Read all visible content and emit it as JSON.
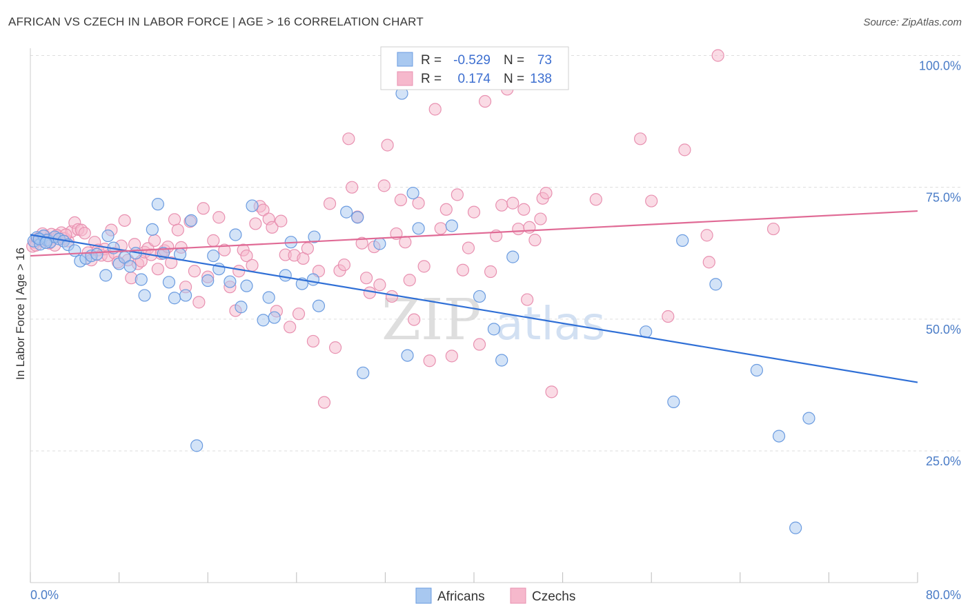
{
  "title": "AFRICAN VS CZECH IN LABOR FORCE | AGE > 16 CORRELATION CHART",
  "source": "Source: ZipAtlas.com",
  "watermark": {
    "zip": "ZIP",
    "atlas": "atlas"
  },
  "legend": {
    "r_label": "R =",
    "n_label": "N =",
    "rows": [
      {
        "r": "-0.529",
        "n": "73"
      },
      {
        "r": "0.174",
        "n": "138"
      }
    ]
  },
  "bottom_legend": [
    "Africans",
    "Czechs"
  ],
  "colors": {
    "africans_fill": "#a8c8f0",
    "africans_stroke": "#6a9be0",
    "africans_line": "#2f6fd6",
    "czechs_fill": "#f6b8cc",
    "czechs_stroke": "#e890b0",
    "czechs_line": "#e06a95",
    "tick_label": "#4a7cc7",
    "grid": "#dddddd"
  },
  "chart_data": {
    "type": "scatter",
    "title": "AFRICAN VS CZECH IN LABOR FORCE | AGE > 16 CORRELATION CHART",
    "xlabel": "",
    "ylabel": "In Labor Force | Age > 16",
    "xlim": [
      0,
      80
    ],
    "ylim": [
      0,
      103
    ],
    "x_tick_labels": [
      "0.0%",
      "80.0%"
    ],
    "y_ticks": [
      25,
      50,
      75,
      100
    ],
    "y_tick_labels": [
      "25.0%",
      "50.0%",
      "75.0%",
      "100.0%"
    ],
    "grid": true,
    "legend_position": "top-center",
    "series": [
      {
        "name": "Africans",
        "R": -0.529,
        "N": 73,
        "trend": [
          [
            0,
            66.0
          ],
          [
            80,
            38.0
          ]
        ],
        "points": [
          [
            0.3,
            64.8
          ],
          [
            0.6,
            65.5
          ],
          [
            0.9,
            64.2
          ],
          [
            1.2,
            65.8
          ],
          [
            1.5,
            65.0
          ],
          [
            1.8,
            64.6
          ],
          [
            2.2,
            65.6
          ],
          [
            2.6,
            65.2
          ],
          [
            3.0,
            64.8
          ],
          [
            3.4,
            64.1
          ],
          [
            4.0,
            63.0
          ],
          [
            4.5,
            61.0
          ],
          [
            5.0,
            61.5
          ],
          [
            5.5,
            62.0
          ],
          [
            6.0,
            62.3
          ],
          [
            6.8,
            58.3
          ],
          [
            7.0,
            65.8
          ],
          [
            7.5,
            63.5
          ],
          [
            8.0,
            60.5
          ],
          [
            8.5,
            61.7
          ],
          [
            9.0,
            60.0
          ],
          [
            9.5,
            62.5
          ],
          [
            10.0,
            57.5
          ],
          [
            10.3,
            54.5
          ],
          [
            11.0,
            67.0
          ],
          [
            11.5,
            71.8
          ],
          [
            12.0,
            62.5
          ],
          [
            12.5,
            57.0
          ],
          [
            13.0,
            54.0
          ],
          [
            13.5,
            62.3
          ],
          [
            14.0,
            54.5
          ],
          [
            14.5,
            68.7
          ],
          [
            15.0,
            26.0
          ],
          [
            16.0,
            57.3
          ],
          [
            16.5,
            62.0
          ],
          [
            17.0,
            59.5
          ],
          [
            18.0,
            57.1
          ],
          [
            18.5,
            66.0
          ],
          [
            19.0,
            52.3
          ],
          [
            19.5,
            56.3
          ],
          [
            20.0,
            71.5
          ],
          [
            21.0,
            49.8
          ],
          [
            21.5,
            54.1
          ],
          [
            22.0,
            50.3
          ],
          [
            23.0,
            58.3
          ],
          [
            23.5,
            64.6
          ],
          [
            24.5,
            56.7
          ],
          [
            25.5,
            57.5
          ],
          [
            25.6,
            65.6
          ],
          [
            26.0,
            52.5
          ],
          [
            28.5,
            70.3
          ],
          [
            29.5,
            69.3
          ],
          [
            30.0,
            39.8
          ],
          [
            31.5,
            64.3
          ],
          [
            33.5,
            92.8
          ],
          [
            34.0,
            43.1
          ],
          [
            34.5,
            73.9
          ],
          [
            35.0,
            67.2
          ],
          [
            38.0,
            67.7
          ],
          [
            40.5,
            54.3
          ],
          [
            41.8,
            48.1
          ],
          [
            42.5,
            42.2
          ],
          [
            43.5,
            61.8
          ],
          [
            55.5,
            47.6
          ],
          [
            58.0,
            34.3
          ],
          [
            58.8,
            64.9
          ],
          [
            61.8,
            56.6
          ],
          [
            65.5,
            40.3
          ],
          [
            67.5,
            27.8
          ],
          [
            69.0,
            10.4
          ],
          [
            70.2,
            31.2
          ],
          [
            0.8,
            65.2
          ],
          [
            1.4,
            64.5
          ]
        ]
      },
      {
        "name": "Czechs",
        "R": 0.174,
        "N": 138,
        "trend": [
          [
            0,
            62.0
          ],
          [
            80,
            70.5
          ]
        ],
        "points": [
          [
            0.4,
            64.5
          ],
          [
            0.7,
            65.3
          ],
          [
            1.0,
            64.9
          ],
          [
            1.3,
            65.8
          ],
          [
            1.6,
            65.0
          ],
          [
            1.9,
            66.1
          ],
          [
            2.2,
            64.0
          ],
          [
            2.5,
            65.6
          ],
          [
            2.8,
            66.4
          ],
          [
            3.1,
            65.3
          ],
          [
            3.4,
            64.8
          ],
          [
            3.7,
            66.6
          ],
          [
            4.0,
            68.3
          ],
          [
            4.3,
            67.0
          ],
          [
            4.6,
            66.9
          ],
          [
            4.9,
            66.3
          ],
          [
            5.2,
            62.6
          ],
          [
            5.5,
            61.2
          ],
          [
            5.8,
            64.6
          ],
          [
            6.1,
            63.1
          ],
          [
            6.4,
            62.1
          ],
          [
            6.7,
            63.3
          ],
          [
            7.0,
            62.0
          ],
          [
            7.3,
            66.9
          ],
          [
            7.6,
            62.5
          ],
          [
            7.9,
            60.8
          ],
          [
            8.2,
            63.9
          ],
          [
            8.5,
            68.7
          ],
          [
            8.8,
            61.2
          ],
          [
            9.1,
            57.8
          ],
          [
            9.4,
            64.2
          ],
          [
            9.7,
            60.5
          ],
          [
            10.0,
            61.0
          ],
          [
            10.3,
            62.7
          ],
          [
            10.6,
            63.4
          ],
          [
            10.9,
            62.2
          ],
          [
            11.2,
            64.9
          ],
          [
            11.5,
            59.5
          ],
          [
            11.8,
            62.4
          ],
          [
            12.1,
            63.0
          ],
          [
            12.4,
            63.7
          ],
          [
            12.7,
            60.7
          ],
          [
            13.0,
            68.9
          ],
          [
            13.3,
            66.9
          ],
          [
            13.6,
            63.6
          ],
          [
            14.0,
            56.1
          ],
          [
            14.4,
            68.5
          ],
          [
            14.8,
            59.1
          ],
          [
            15.2,
            53.2
          ],
          [
            15.6,
            71.0
          ],
          [
            16.0,
            58.0
          ],
          [
            16.5,
            64.9
          ],
          [
            17.0,
            69.3
          ],
          [
            17.5,
            63.1
          ],
          [
            18.0,
            56.1
          ],
          [
            18.5,
            51.6
          ],
          [
            18.8,
            59.1
          ],
          [
            19.2,
            63.1
          ],
          [
            19.5,
            62.0
          ],
          [
            20.0,
            60.2
          ],
          [
            20.3,
            68.1
          ],
          [
            20.7,
            71.4
          ],
          [
            21.0,
            70.7
          ],
          [
            21.5,
            69.0
          ],
          [
            21.8,
            67.4
          ],
          [
            22.2,
            51.5
          ],
          [
            22.6,
            68.6
          ],
          [
            23.0,
            62.2
          ],
          [
            23.4,
            48.5
          ],
          [
            23.8,
            62.1
          ],
          [
            24.2,
            51.0
          ],
          [
            24.6,
            61.5
          ],
          [
            25.0,
            63.4
          ],
          [
            25.5,
            45.8
          ],
          [
            26.0,
            59.1
          ],
          [
            26.5,
            34.2
          ],
          [
            27.0,
            71.9
          ],
          [
            27.5,
            44.6
          ],
          [
            27.9,
            59.2
          ],
          [
            28.3,
            60.3
          ],
          [
            28.7,
            84.2
          ],
          [
            29.0,
            75.0
          ],
          [
            29.5,
            69.4
          ],
          [
            29.9,
            64.4
          ],
          [
            30.3,
            57.8
          ],
          [
            30.6,
            55.0
          ],
          [
            31.0,
            63.7
          ],
          [
            31.5,
            56.5
          ],
          [
            31.9,
            75.3
          ],
          [
            32.2,
            83.0
          ],
          [
            32.6,
            54.3
          ],
          [
            33.0,
            66.2
          ],
          [
            33.4,
            72.6
          ],
          [
            33.8,
            64.6
          ],
          [
            34.2,
            57.4
          ],
          [
            34.6,
            49.9
          ],
          [
            35.0,
            72.0
          ],
          [
            35.5,
            60.0
          ],
          [
            36.0,
            42.1
          ],
          [
            36.5,
            89.8
          ],
          [
            37.0,
            67.2
          ],
          [
            37.5,
            70.8
          ],
          [
            38.0,
            43.0
          ],
          [
            38.5,
            73.6
          ],
          [
            39.0,
            59.3
          ],
          [
            39.5,
            63.5
          ],
          [
            40.0,
            70.3
          ],
          [
            40.5,
            45.2
          ],
          [
            41.0,
            91.3
          ],
          [
            41.5,
            59.0
          ],
          [
            42.0,
            65.8
          ],
          [
            42.5,
            71.6
          ],
          [
            43.0,
            93.6
          ],
          [
            43.5,
            72.0
          ],
          [
            44.0,
            67.1
          ],
          [
            44.5,
            70.8
          ],
          [
            44.8,
            53.7
          ],
          [
            45.0,
            67.4
          ],
          [
            45.5,
            65.0
          ],
          [
            46.0,
            69.0
          ],
          [
            46.2,
            72.9
          ],
          [
            46.5,
            73.9
          ],
          [
            47.0,
            36.2
          ],
          [
            51.0,
            72.7
          ],
          [
            55.0,
            84.2
          ],
          [
            56.0,
            72.4
          ],
          [
            57.5,
            50.5
          ],
          [
            59.0,
            82.1
          ],
          [
            61.0,
            65.9
          ],
          [
            61.2,
            60.8
          ],
          [
            62.0,
            100.0
          ],
          [
            67.0,
            67.1
          ],
          [
            0.2,
            63.8
          ],
          [
            0.5,
            64.0
          ],
          [
            1.1,
            66.2
          ],
          [
            1.7,
            64.4
          ],
          [
            2.4,
            65.9
          ],
          [
            3.2,
            66.0
          ]
        ]
      }
    ]
  }
}
